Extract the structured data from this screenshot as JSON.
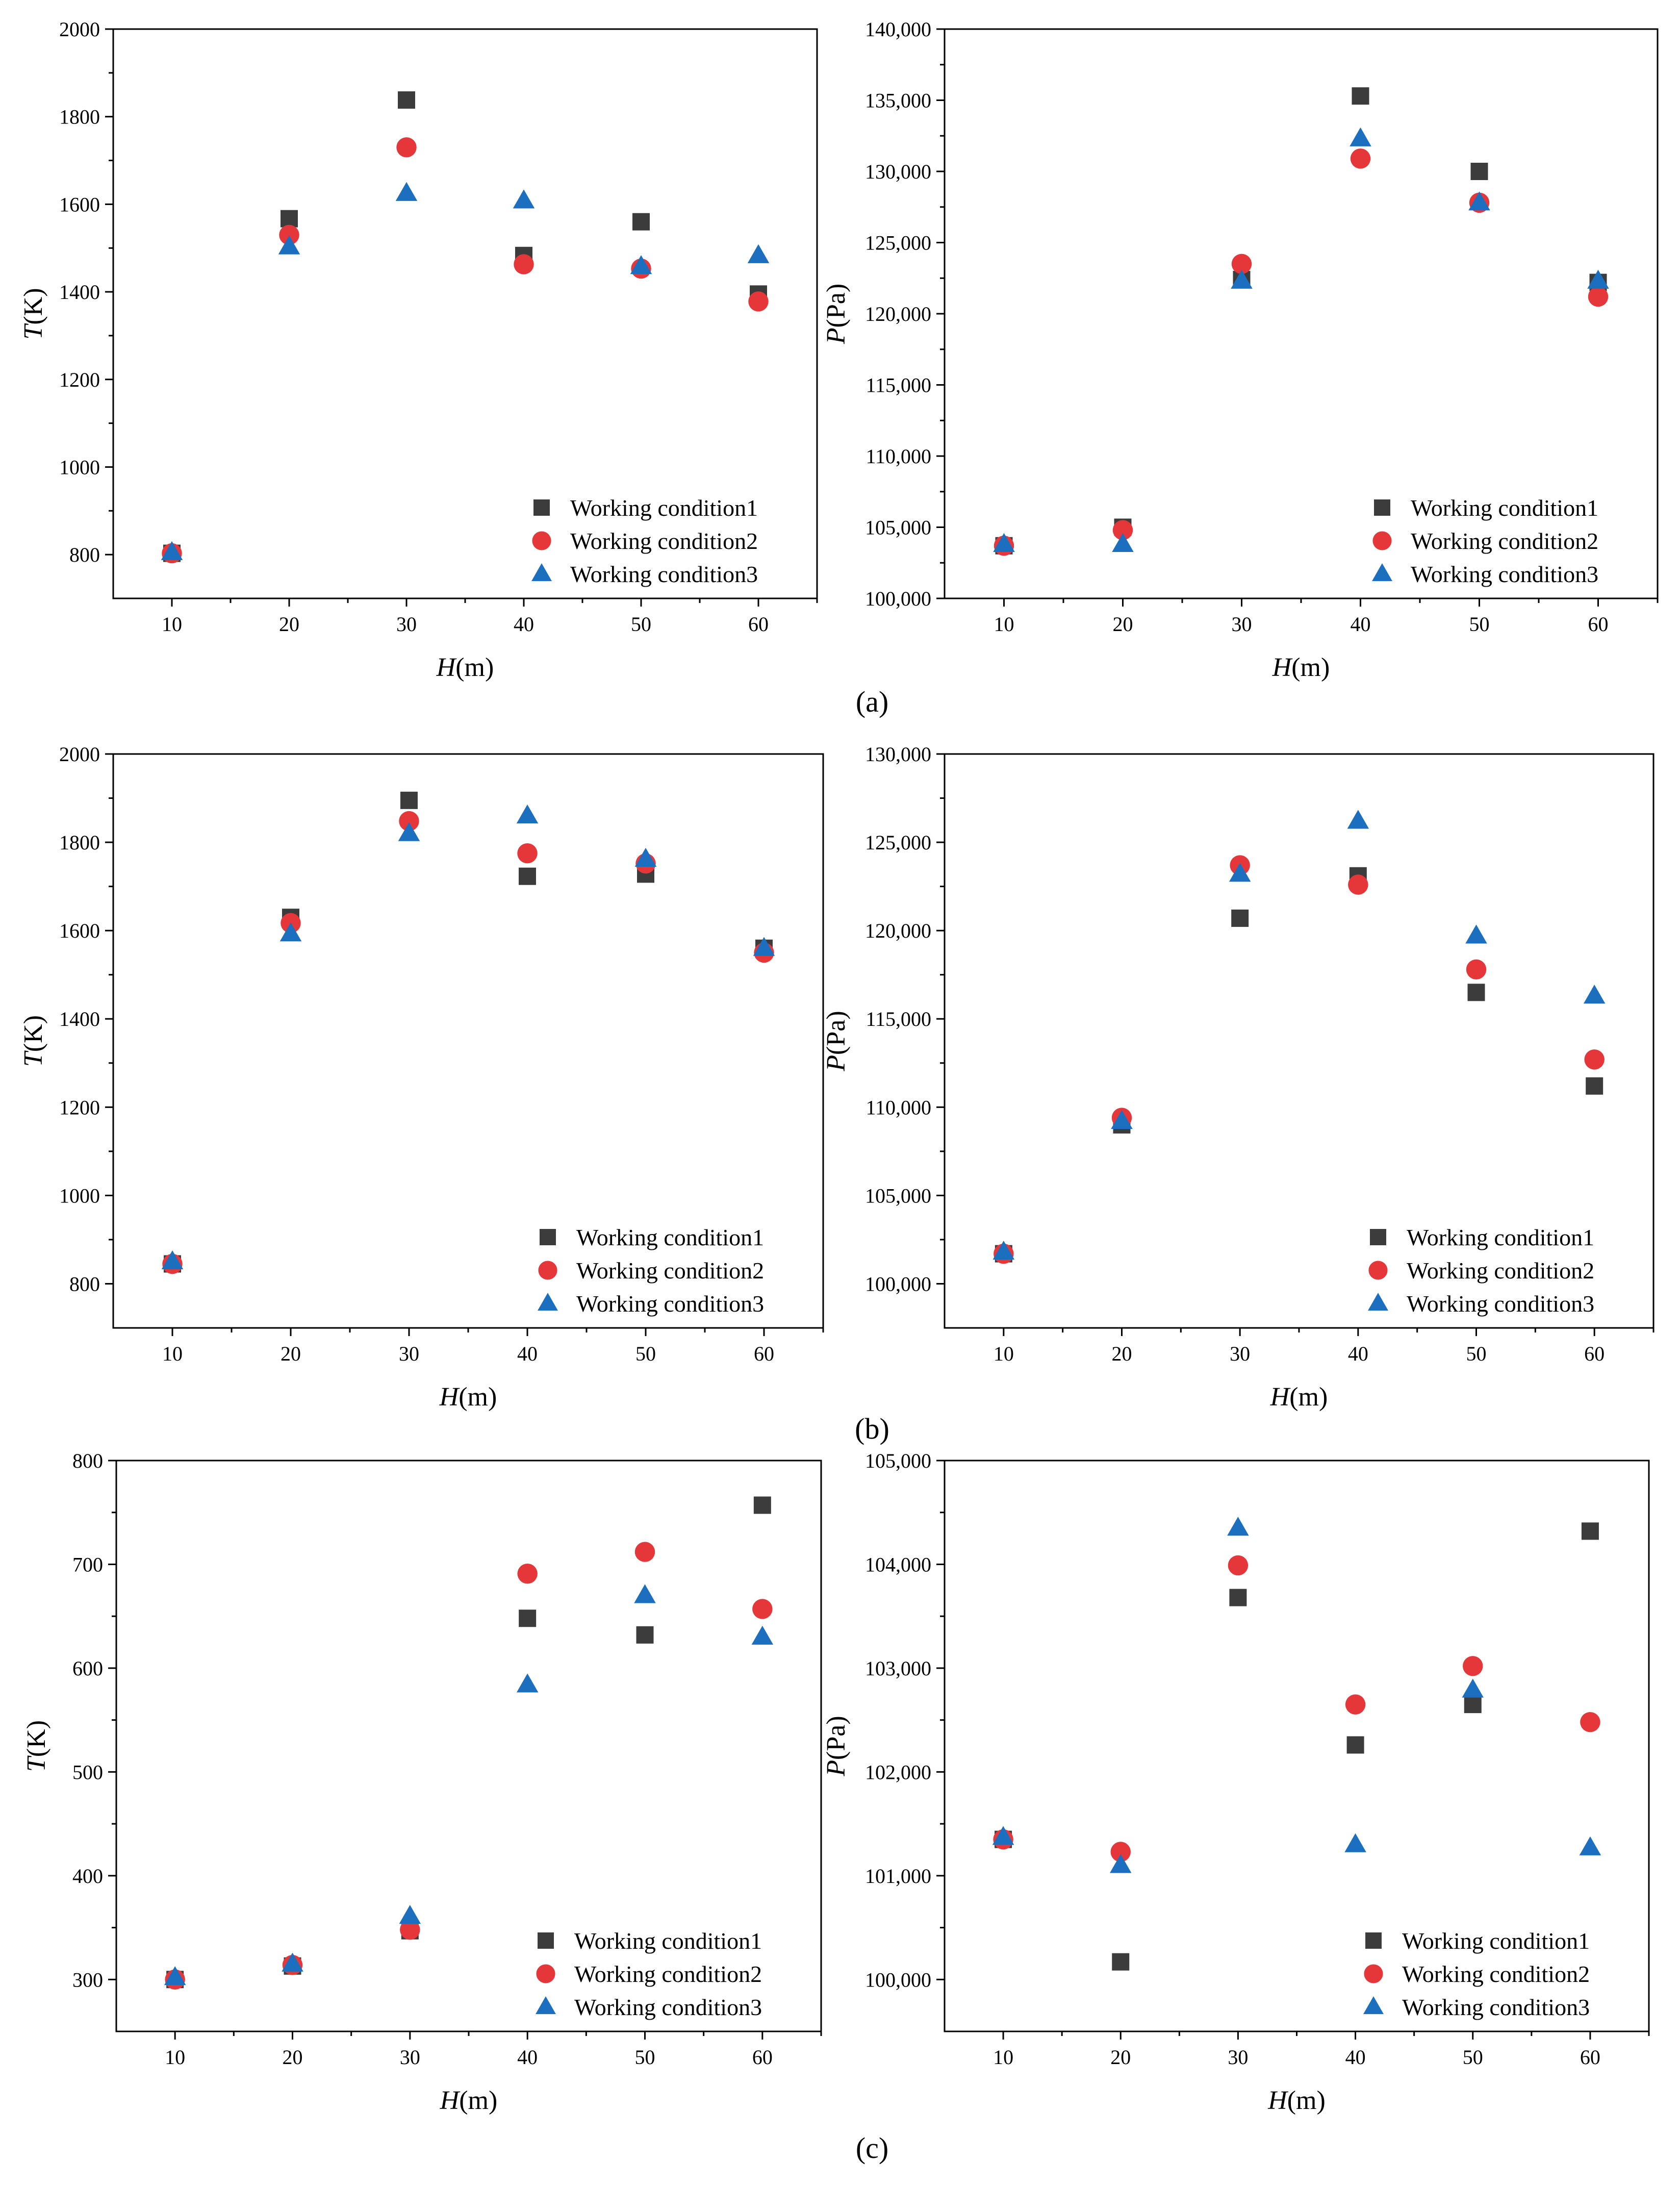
{
  "colors": {
    "Working condition1": "#3c3c3c",
    "Working condition2": "#e5373a",
    "Working condition3": "#1c6fbf"
  },
  "series_names": [
    "Working condition1",
    "Working condition2",
    "Working condition3"
  ],
  "series_markers": [
    "square",
    "circle",
    "triangle"
  ],
  "panels": [
    {
      "label": "(a)",
      "charts": [
        0,
        1
      ]
    },
    {
      "label": "(b)",
      "charts": [
        2,
        3
      ]
    },
    {
      "label": "(c)",
      "charts": [
        4,
        5
      ]
    }
  ],
  "chart_data": [
    {
      "type": "scatter",
      "panel": "(a)",
      "xlabel_italic": "H",
      "xlabel_rest": "(m)",
      "ylabel_italic": "T",
      "ylabel_rest": "(K)",
      "xlim": [
        5,
        65
      ],
      "ylim": [
        700,
        2000
      ],
      "xticks": [
        10,
        20,
        30,
        40,
        50,
        60
      ],
      "yticks": [
        800,
        1000,
        1200,
        1400,
        1600,
        1800,
        2000
      ],
      "ytick_labels": [
        "800",
        "1000",
        "1200",
        "1400",
        "1600",
        "1800",
        "2000"
      ],
      "legend": "bottom-right",
      "series": [
        {
          "name": "Working condition1",
          "x": [
            10,
            20,
            30,
            40,
            50,
            60
          ],
          "y": [
            803,
            1567,
            1838,
            1483,
            1560,
            1395
          ]
        },
        {
          "name": "Working condition2",
          "x": [
            10,
            20,
            30,
            40,
            50,
            60
          ],
          "y": [
            803,
            1530,
            1730,
            1463,
            1453,
            1378
          ]
        },
        {
          "name": "Working condition3",
          "x": [
            10,
            20,
            30,
            40,
            50,
            60
          ],
          "y": [
            805,
            1503,
            1625,
            1608,
            1458,
            1483
          ]
        }
      ]
    },
    {
      "type": "scatter",
      "panel": "(a)",
      "xlabel_italic": "H",
      "xlabel_rest": "(m)",
      "ylabel_italic": "P",
      "ylabel_rest": "(Pa)",
      "xlim": [
        5,
        65
      ],
      "ylim": [
        100000,
        140000
      ],
      "xticks": [
        10,
        20,
        30,
        40,
        50,
        60
      ],
      "yticks": [
        100000,
        105000,
        110000,
        115000,
        120000,
        125000,
        130000,
        135000,
        140000
      ],
      "ytick_labels": [
        "100,000",
        "105,000",
        "110,000",
        "115,000",
        "120,000",
        "125,000",
        "130,000",
        "135,000",
        "140,000"
      ],
      "legend": "bottom-right",
      "series": [
        {
          "name": "Working condition1",
          "x": [
            10,
            20,
            30,
            40,
            50,
            60
          ],
          "y": [
            103700,
            105000,
            122400,
            135300,
            130000,
            122200
          ]
        },
        {
          "name": "Working condition2",
          "x": [
            10,
            20,
            30,
            40,
            50,
            60
          ],
          "y": [
            103700,
            104800,
            123500,
            130900,
            127800,
            121200
          ]
        },
        {
          "name": "Working condition3",
          "x": [
            10,
            20,
            30,
            40,
            50,
            60
          ],
          "y": [
            103800,
            103800,
            122300,
            132300,
            127800,
            122300
          ]
        }
      ]
    },
    {
      "type": "scatter",
      "panel": "(b)",
      "xlabel_italic": "H",
      "xlabel_rest": "(m)",
      "ylabel_italic": "T",
      "ylabel_rest": "(K)",
      "xlim": [
        5,
        65
      ],
      "ylim": [
        700,
        2000
      ],
      "xticks": [
        10,
        20,
        30,
        40,
        50,
        60
      ],
      "yticks": [
        800,
        1000,
        1200,
        1400,
        1600,
        1800,
        2000
      ],
      "ytick_labels": [
        "800",
        "1000",
        "1200",
        "1400",
        "1600",
        "1800",
        "2000"
      ],
      "legend": "bottom-right",
      "series": [
        {
          "name": "Working condition1",
          "x": [
            10,
            20,
            30,
            40,
            50,
            60
          ],
          "y": [
            845,
            1630,
            1895,
            1723,
            1728,
            1560
          ]
        },
        {
          "name": "Working condition2",
          "x": [
            10,
            20,
            30,
            40,
            50,
            60
          ],
          "y": [
            845,
            1617,
            1848,
            1775,
            1752,
            1550
          ]
        },
        {
          "name": "Working condition3",
          "x": [
            10,
            20,
            30,
            40,
            50,
            60
          ],
          "y": [
            850,
            1593,
            1820,
            1860,
            1762,
            1560
          ]
        }
      ]
    },
    {
      "type": "scatter",
      "panel": "(b)",
      "xlabel_italic": "H",
      "xlabel_rest": "(m)",
      "ylabel_italic": "P",
      "ylabel_rest": "(Pa)",
      "xlim": [
        5,
        65
      ],
      "ylim": [
        97500,
        130000
      ],
      "xticks": [
        10,
        20,
        30,
        40,
        50,
        60
      ],
      "yticks": [
        100000,
        105000,
        110000,
        115000,
        120000,
        125000,
        130000
      ],
      "ytick_labels": [
        "100,000",
        "105,000",
        "110,000",
        "115,000",
        "120,000",
        "125,000",
        "130,000"
      ],
      "legend": "bottom-right",
      "series": [
        {
          "name": "Working condition1",
          "x": [
            10,
            20,
            30,
            40,
            50,
            60
          ],
          "y": [
            101700,
            109000,
            120700,
            123100,
            116500,
            111200
          ]
        },
        {
          "name": "Working condition2",
          "x": [
            10,
            20,
            30,
            40,
            50,
            60
          ],
          "y": [
            101700,
            109400,
            123700,
            122600,
            117800,
            112700
          ]
        },
        {
          "name": "Working condition3",
          "x": [
            10,
            20,
            30,
            40,
            50,
            60
          ],
          "y": [
            101800,
            109200,
            123200,
            126200,
            119700,
            116300
          ]
        }
      ]
    },
    {
      "type": "scatter",
      "panel": "(c)",
      "xlabel_italic": "H",
      "xlabel_rest": "(m)",
      "ylabel_italic": "T",
      "ylabel_rest": "(K)",
      "xlim": [
        5,
        65
      ],
      "ylim": [
        250,
        800
      ],
      "xticks": [
        10,
        20,
        30,
        40,
        50,
        60
      ],
      "yticks": [
        300,
        400,
        500,
        600,
        700,
        800
      ],
      "ytick_labels": [
        "300",
        "400",
        "500",
        "600",
        "700",
        "800"
      ],
      "legend": "bottom-right",
      "series": [
        {
          "name": "Working condition1",
          "x": [
            10,
            20,
            30,
            40,
            50,
            60
          ],
          "y": [
            300,
            313,
            347,
            648,
            632,
            757
          ]
        },
        {
          "name": "Working condition2",
          "x": [
            10,
            20,
            30,
            40,
            50,
            60
          ],
          "y": [
            300,
            314,
            348,
            691,
            712,
            657
          ]
        },
        {
          "name": "Working condition3",
          "x": [
            10,
            20,
            30,
            40,
            50,
            60
          ],
          "y": [
            302,
            315,
            361,
            584,
            670,
            630
          ]
        }
      ]
    },
    {
      "type": "scatter",
      "panel": "(c)",
      "xlabel_italic": "H",
      "xlabel_rest": "(m)",
      "ylabel_italic": "P",
      "ylabel_rest": "(Pa)",
      "xlim": [
        5,
        65
      ],
      "ylim": [
        99500,
        105000
      ],
      "xticks": [
        10,
        20,
        30,
        40,
        50,
        60
      ],
      "yticks": [
        100000,
        101000,
        102000,
        103000,
        104000,
        105000
      ],
      "ytick_labels": [
        "100,000",
        "101,000",
        "102,000",
        "103,000",
        "104,000",
        "105,000"
      ],
      "legend": "bottom-right",
      "series": [
        {
          "name": "Working condition1",
          "x": [
            10,
            20,
            30,
            40,
            50,
            60
          ],
          "y": [
            101350,
            100170,
            103680,
            102260,
            102650,
            104320
          ]
        },
        {
          "name": "Working condition2",
          "x": [
            10,
            20,
            30,
            40,
            50,
            60
          ],
          "y": [
            101350,
            101230,
            103990,
            102650,
            103020,
            102480
          ]
        },
        {
          "name": "Working condition3",
          "x": [
            10,
            20,
            30,
            40,
            50,
            60
          ],
          "y": [
            101370,
            101100,
            104350,
            101300,
            102790,
            101270
          ]
        }
      ]
    }
  ]
}
